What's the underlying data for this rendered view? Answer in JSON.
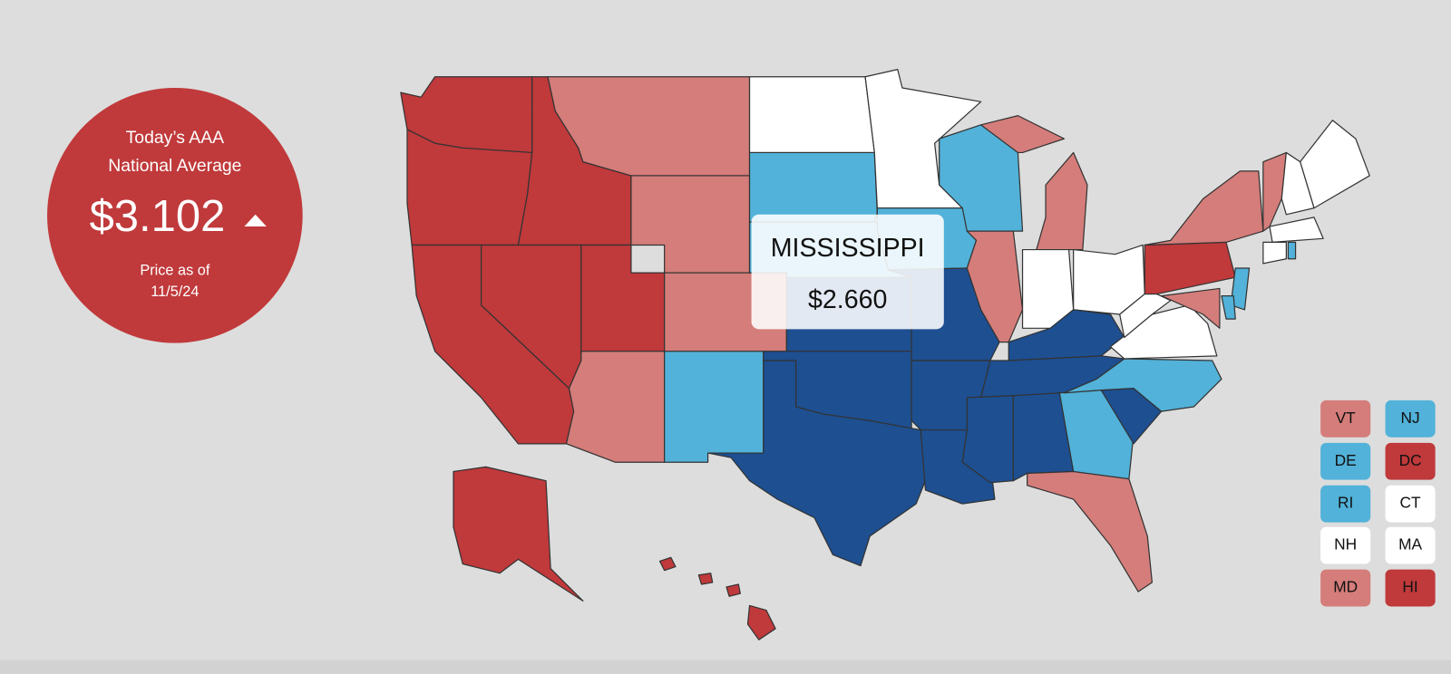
{
  "national_average": {
    "heading_line1": "Today’s AAA",
    "heading_line2": "National Average",
    "price": "$3.102",
    "date_caption": "Price as of",
    "date": "11/5/24"
  },
  "tooltip": {
    "state": "MISSISSIPPI",
    "price": "$2.660"
  },
  "small_states": [
    "VT",
    "NJ",
    "DE",
    "DC",
    "RI",
    "CT",
    "NH",
    "MA",
    "MD",
    "HI"
  ]
}
